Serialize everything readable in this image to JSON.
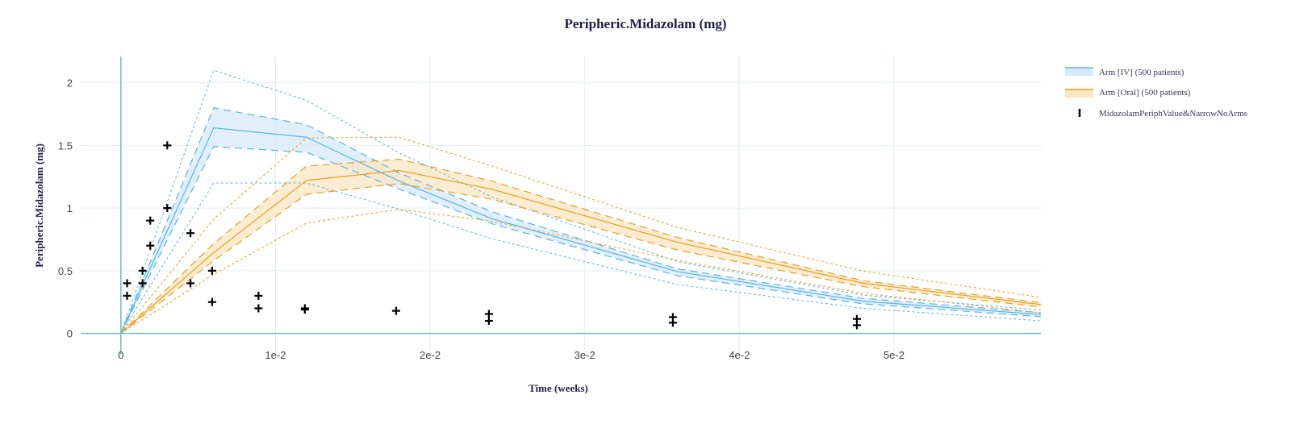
{
  "chart_data": {
    "type": "line",
    "title": "Peripheric.Midazolam (mg)",
    "xlabel": "Time (weeks)",
    "ylabel": "Peripheric.Midazolam (mg)",
    "xlim": [
      -0.0026,
      0.0595
    ],
    "ylim": [
      -0.17,
      2.21
    ],
    "xticks": [
      0,
      0.01,
      0.02,
      0.03,
      0.04,
      0.05
    ],
    "xtick_labels": [
      "0",
      "1e-2",
      "2e-2",
      "3e-2",
      "4e-2",
      "5e-2"
    ],
    "yticks": [
      0,
      0.5,
      1,
      1.5,
      2
    ],
    "ytick_labels": [
      "0",
      "0.5",
      "1",
      "1.5",
      "2"
    ],
    "grid": true,
    "legend_position": "top-right",
    "x": [
      0,
      0.006,
      0.012,
      0.018,
      0.024,
      0.036,
      0.048,
      0.0595
    ],
    "series": [
      {
        "name": "Arm [IV] (500 patients)",
        "color": "#5ab4e5",
        "fill_color": "#d6eaf8",
        "median": [
          0,
          1.64,
          1.565,
          1.215,
          0.915,
          0.493,
          0.257,
          0.15
        ],
        "band_upper": [
          0,
          1.8,
          1.665,
          1.28,
          0.97,
          0.515,
          0.28,
          0.165
        ],
        "band_lower": [
          0,
          1.49,
          1.445,
          1.15,
          0.875,
          0.46,
          0.236,
          0.133
        ],
        "outer_upper": [
          0,
          2.1,
          1.86,
          1.44,
          1.09,
          0.572,
          0.305,
          0.186
        ],
        "outer_lower": [
          0,
          1.2,
          1.2,
          0.99,
          0.755,
          0.39,
          0.2,
          0.1
        ]
      },
      {
        "name": "Arm [Oral] (500 patients)",
        "color": "#e8a020",
        "fill_color": "#fbe6c2",
        "median": [
          0,
          0.644,
          1.22,
          1.3,
          1.15,
          0.727,
          0.4,
          0.23
        ],
        "band_upper": [
          0,
          0.716,
          1.335,
          1.39,
          1.215,
          0.765,
          0.42,
          0.245
        ],
        "band_lower": [
          0,
          0.58,
          1.11,
          1.195,
          1.07,
          0.665,
          0.373,
          0.21
        ],
        "outer_upper": [
          0,
          0.91,
          1.56,
          1.565,
          1.335,
          0.845,
          0.497,
          0.287
        ],
        "outer_lower": [
          0,
          0.47,
          0.88,
          0.99,
          0.895,
          0.583,
          0.32,
          0.165
        ]
      }
    ],
    "observed": {
      "name": "MidazolamPeriphValue&NarrowNoArms",
      "color": "#000000",
      "points": [
        {
          "x": 0.0004,
          "y": 0.4
        },
        {
          "x": 0.0004,
          "y": 0.3
        },
        {
          "x": 0.0014,
          "y": 0.5
        },
        {
          "x": 0.0014,
          "y": 0.4
        },
        {
          "x": 0.0019,
          "y": 0.9
        },
        {
          "x": 0.0019,
          "y": 0.7
        },
        {
          "x": 0.003,
          "y": 1.5
        },
        {
          "x": 0.003,
          "y": 1.0
        },
        {
          "x": 0.0045,
          "y": 0.8
        },
        {
          "x": 0.0045,
          "y": 0.4
        },
        {
          "x": 0.0059,
          "y": 0.5
        },
        {
          "x": 0.0059,
          "y": 0.25
        },
        {
          "x": 0.0089,
          "y": 0.3
        },
        {
          "x": 0.0089,
          "y": 0.2
        },
        {
          "x": 0.0119,
          "y": 0.2
        },
        {
          "x": 0.0119,
          "y": 0.19
        },
        {
          "x": 0.0178,
          "y": 0.18
        },
        {
          "x": 0.0238,
          "y": 0.155
        },
        {
          "x": 0.0238,
          "y": 0.1
        },
        {
          "x": 0.0357,
          "y": 0.13
        },
        {
          "x": 0.0357,
          "y": 0.085
        },
        {
          "x": 0.0476,
          "y": 0.115
        },
        {
          "x": 0.0476,
          "y": 0.065
        }
      ]
    }
  }
}
